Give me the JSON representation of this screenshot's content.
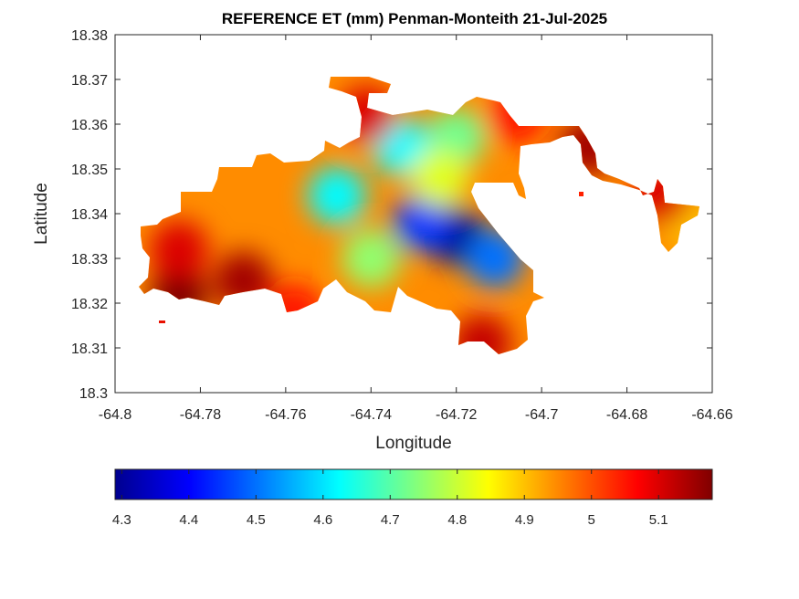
{
  "chart_data": {
    "type": "heatmap",
    "title": "REFERENCE ET (mm) Penman-Monteith 21-Jul-2025",
    "xlabel": "Longitude",
    "ylabel": "Latitude",
    "xlim": [
      -64.8,
      -64.66
    ],
    "ylim": [
      18.3,
      18.38
    ],
    "xticks": [
      "-64.8",
      "-64.78",
      "-64.76",
      "-64.74",
      "-64.72",
      "-64.7",
      "-64.68",
      "-64.66"
    ],
    "yticks": [
      "18.38",
      "18.37",
      "18.36",
      "18.35",
      "18.34",
      "18.33",
      "18.32",
      "18.31",
      "18.3"
    ],
    "colormap": "jet",
    "colorbar": {
      "orientation": "horizontal",
      "placement": "bottom",
      "range": [
        4.29,
        5.18
      ],
      "ticks": [
        "4.3",
        "4.4",
        "4.5",
        "4.6",
        "4.7",
        "4.8",
        "4.9",
        "5",
        "5.1"
      ]
    },
    "field_hotspots": [
      {
        "lon": -64.72,
        "lat": 18.335,
        "value": 4.3
      },
      {
        "lon": -64.728,
        "lat": 18.338,
        "value": 4.45
      },
      {
        "lon": -64.711,
        "lat": 18.33,
        "value": 4.5
      },
      {
        "lon": -64.748,
        "lat": 18.344,
        "value": 4.62
      },
      {
        "lon": -64.733,
        "lat": 18.355,
        "value": 4.62
      },
      {
        "lon": -64.74,
        "lat": 18.33,
        "value": 4.75
      },
      {
        "lon": -64.72,
        "lat": 18.357,
        "value": 4.72
      },
      {
        "lon": -64.724,
        "lat": 18.348,
        "value": 4.82
      },
      {
        "lon": -64.785,
        "lat": 18.322,
        "value": 5.18
      },
      {
        "lon": -64.77,
        "lat": 18.325,
        "value": 5.15
      },
      {
        "lon": -64.785,
        "lat": 18.332,
        "value": 5.1
      },
      {
        "lon": -64.741,
        "lat": 18.362,
        "value": 5.1
      },
      {
        "lon": -64.714,
        "lat": 18.311,
        "value": 5.12
      },
      {
        "lon": -64.689,
        "lat": 18.355,
        "value": 5.15
      },
      {
        "lon": -64.758,
        "lat": 18.318,
        "value": 5.05
      },
      {
        "lon": -64.706,
        "lat": 18.362,
        "value": 5.05
      },
      {
        "lon": -64.665,
        "lat": 18.338,
        "value": 4.9
      },
      {
        "lon": -64.672,
        "lat": 18.344,
        "value": 5.1
      }
    ]
  }
}
